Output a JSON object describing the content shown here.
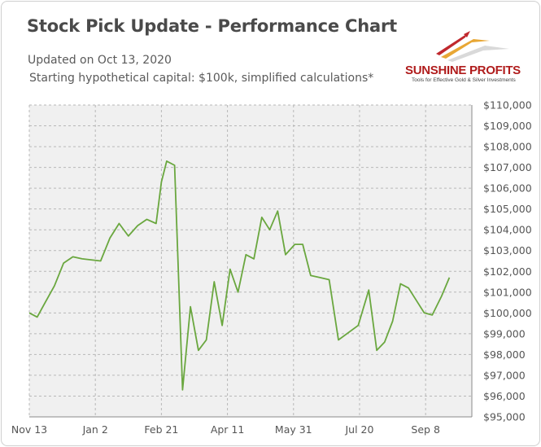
{
  "title": "Stock Pick Update - Performance Chart",
  "updated": "Updated on Oct 13, 2020",
  "subtitle": "Starting hypothetical capital: $100k, simplified calculations*",
  "logo": {
    "name": "SUNSHINE PROFITS",
    "tagline": "Tools for Effective Gold & Silver Investments",
    "colors": [
      "#c0282d",
      "#e8a735",
      "#d9d9d9"
    ]
  },
  "colors": {
    "line": "#6aa73f",
    "plot_bg": "#f0f0f0",
    "grid": "#b8b8b8",
    "axis_text": "#555555"
  },
  "chart_data": {
    "type": "line",
    "title": "Stock Pick Update - Performance Chart",
    "xlabel": "",
    "ylabel": "",
    "ylim": [
      95000,
      110000
    ],
    "y_ticks": [
      95000,
      96000,
      97000,
      98000,
      99000,
      100000,
      101000,
      102000,
      103000,
      104000,
      105000,
      106000,
      107000,
      108000,
      109000,
      110000
    ],
    "y_tick_labels": [
      "$95,000",
      "$96,000",
      "$97,000",
      "$98,000",
      "$99,000",
      "$100,000",
      "$101,000",
      "$102,000",
      "$103,000",
      "$104,000",
      "$105,000",
      "$106,000",
      "$107,000",
      "$108,000",
      "$109,000",
      "$110,000"
    ],
    "x_tick_labels": [
      "Nov 13",
      "Jan 2",
      "Feb 21",
      "Apr 11",
      "May 31",
      "Jul 20",
      "Sep 8"
    ],
    "x_tick_dates": [
      "2019-11-13",
      "2020-01-02",
      "2020-02-21",
      "2020-04-11",
      "2020-05-31",
      "2020-07-20",
      "2020-09-08"
    ],
    "xlim": [
      "2019-11-13",
      "2020-10-13"
    ],
    "grid": true,
    "y_axis_position": "right",
    "series": [
      {
        "x": [
          "2019-11-13",
          "2019-11-19",
          "2019-11-25",
          "2019-12-02",
          "2019-12-09",
          "2019-12-16",
          "2019-12-23",
          "2020-01-06",
          "2020-01-13",
          "2020-01-20",
          "2020-01-27",
          "2020-02-03",
          "2020-02-10",
          "2020-02-17",
          "2020-02-21",
          "2020-02-25",
          "2020-03-02",
          "2020-03-08",
          "2020-03-14",
          "2020-03-20",
          "2020-03-26",
          "2020-04-01",
          "2020-04-07",
          "2020-04-13",
          "2020-04-19",
          "2020-04-25",
          "2020-05-01",
          "2020-05-07",
          "2020-05-13",
          "2020-05-19",
          "2020-05-25",
          "2020-06-01",
          "2020-06-07",
          "2020-06-13",
          "2020-06-20",
          "2020-06-27",
          "2020-07-04",
          "2020-07-19",
          "2020-07-27",
          "2020-08-02",
          "2020-08-08",
          "2020-08-14",
          "2020-08-20",
          "2020-08-26",
          "2020-09-07",
          "2020-09-13",
          "2020-09-20",
          "2020-09-26",
          "2020-10-03",
          "2020-10-13"
        ],
        "values": [
          100000,
          99800,
          100500,
          101300,
          102400,
          102700,
          102600,
          102500,
          103600,
          104300,
          103700,
          104200,
          104500,
          104300,
          106300,
          107300,
          107100,
          96300,
          100300,
          98200,
          98700,
          101500,
          99400,
          102100,
          101000,
          102800,
          102600,
          104600,
          104000,
          104900,
          102800,
          103300,
          103300,
          101800,
          101700,
          101600,
          98700,
          99400,
          101100,
          98200,
          98600,
          99600,
          101400,
          101200,
          100000,
          99900,
          100800,
          101700,
          null,
          null
        ]
      }
    ]
  }
}
